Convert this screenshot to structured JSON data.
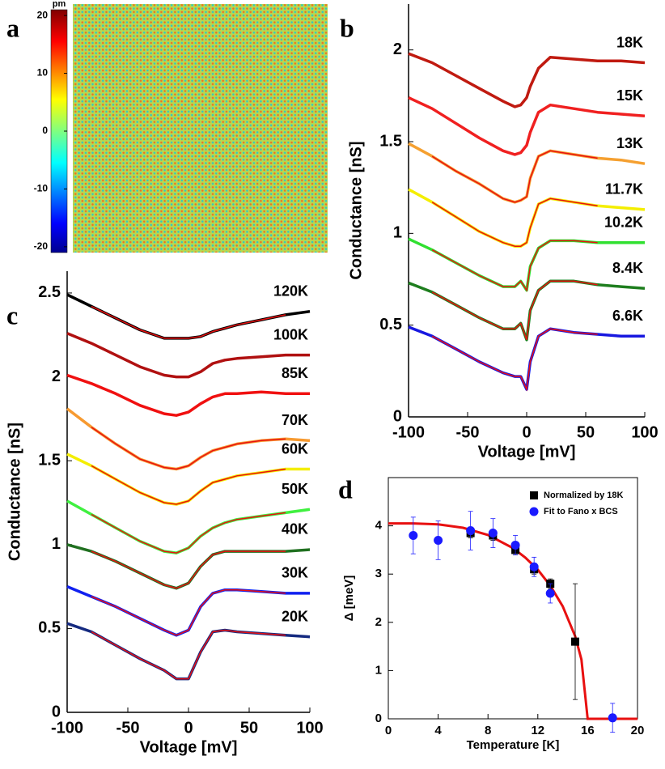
{
  "chart_data": [
    {
      "type": "image",
      "panel": "a",
      "colorbar_label": "pm",
      "colorbar_lim": [
        -21,
        21
      ],
      "colorbar_ticks": [
        20,
        10,
        0,
        -10,
        -20
      ]
    },
    {
      "type": "line",
      "panel": "b",
      "xlabel": "Voltage [mV]",
      "ylabel": "Conductance [nS]",
      "xlim": [
        -100,
        100
      ],
      "ylim": [
        0,
        2.25
      ],
      "xticks": [
        -100,
        -50,
        0,
        50,
        100
      ],
      "yticks": [
        0,
        0.5,
        1,
        1.5,
        2
      ],
      "x": [
        -100,
        -80,
        -60,
        -40,
        -20,
        -10,
        -5,
        0,
        3,
        10,
        20,
        40,
        60,
        80,
        100
      ],
      "fit_color": "#e81010",
      "series": [
        {
          "name": "18K",
          "color": "#c01a10",
          "values": [
            1.98,
            1.93,
            1.86,
            1.79,
            1.72,
            1.69,
            1.7,
            1.74,
            1.8,
            1.9,
            1.96,
            1.95,
            1.94,
            1.94,
            1.93
          ]
        },
        {
          "name": "15K",
          "color": "#f02020",
          "values": [
            1.74,
            1.68,
            1.6,
            1.52,
            1.45,
            1.43,
            1.44,
            1.48,
            1.55,
            1.66,
            1.7,
            1.68,
            1.66,
            1.65,
            1.64
          ]
        },
        {
          "name": "13K",
          "color": "#f5a030",
          "values": [
            1.49,
            1.42,
            1.34,
            1.27,
            1.19,
            1.17,
            1.18,
            1.2,
            1.3,
            1.42,
            1.45,
            1.43,
            1.41,
            1.4,
            1.38
          ],
          "fit_range": [
            -80,
            60
          ]
        },
        {
          "name": "11.7K",
          "color": "#f4ee00",
          "values": [
            1.24,
            1.17,
            1.09,
            1.01,
            0.95,
            0.93,
            0.93,
            0.95,
            1.03,
            1.16,
            1.19,
            1.17,
            1.15,
            1.14,
            1.13
          ],
          "fit_range": [
            -80,
            60
          ]
        },
        {
          "name": "10.2K",
          "color": "#30e030",
          "values": [
            0.97,
            0.91,
            0.84,
            0.77,
            0.71,
            0.71,
            0.74,
            0.69,
            0.82,
            0.92,
            0.96,
            0.96,
            0.95,
            0.95,
            0.95
          ],
          "fit_range": [
            -80,
            60
          ]
        },
        {
          "name": "8.4K",
          "color": "#1e7e1e",
          "values": [
            0.73,
            0.68,
            0.61,
            0.54,
            0.48,
            0.48,
            0.51,
            0.42,
            0.58,
            0.69,
            0.74,
            0.74,
            0.72,
            0.71,
            0.7
          ],
          "fit_range": [
            -80,
            60
          ]
        },
        {
          "name": "6.6K",
          "color": "#1818e0",
          "values": [
            0.49,
            0.44,
            0.37,
            0.3,
            0.24,
            0.22,
            0.22,
            0.15,
            0.3,
            0.44,
            0.48,
            0.46,
            0.45,
            0.44,
            0.44
          ],
          "fit_range": [
            -80,
            60
          ]
        }
      ]
    },
    {
      "type": "line",
      "panel": "c",
      "xlabel": "Voltage [mV]",
      "ylabel": "Conductance [nS]",
      "xlim": [
        -100,
        100
      ],
      "ylim": [
        0,
        2.63
      ],
      "xticks": [
        -100,
        -50,
        0,
        50,
        100
      ],
      "yticks": [
        0,
        0.5,
        1,
        1.5,
        2,
        2.5
      ],
      "x": [
        -100,
        -80,
        -60,
        -40,
        -20,
        -10,
        0,
        10,
        20,
        30,
        40,
        60,
        80,
        100
      ],
      "fit_color": "#e81010",
      "series": [
        {
          "name": "120K",
          "color": "#000000",
          "values": [
            2.49,
            2.42,
            2.35,
            2.28,
            2.23,
            2.23,
            2.23,
            2.24,
            2.27,
            2.29,
            2.31,
            2.34,
            2.37,
            2.39
          ],
          "fit_range": [
            -80,
            80
          ]
        },
        {
          "name": "100K",
          "color": "#b01010",
          "values": [
            2.26,
            2.2,
            2.13,
            2.06,
            2.01,
            2.0,
            2.0,
            2.03,
            2.08,
            2.1,
            2.11,
            2.12,
            2.13,
            2.13
          ]
        },
        {
          "name": "85K",
          "color": "#f01010",
          "values": [
            2.01,
            1.96,
            1.9,
            1.83,
            1.78,
            1.77,
            1.79,
            1.84,
            1.88,
            1.9,
            1.9,
            1.91,
            1.9,
            1.9
          ]
        },
        {
          "name": "70K",
          "color": "#f79a30",
          "values": [
            1.81,
            1.7,
            1.6,
            1.51,
            1.46,
            1.45,
            1.47,
            1.52,
            1.56,
            1.58,
            1.6,
            1.62,
            1.63,
            1.62
          ],
          "fit_range": [
            -80,
            80
          ]
        },
        {
          "name": "60K",
          "color": "#f4ee00",
          "values": [
            1.54,
            1.47,
            1.39,
            1.31,
            1.25,
            1.24,
            1.26,
            1.32,
            1.37,
            1.39,
            1.41,
            1.43,
            1.45,
            1.45
          ],
          "fit_range": [
            -80,
            80
          ]
        },
        {
          "name": "50K",
          "color": "#40f040",
          "values": [
            1.26,
            1.18,
            1.1,
            1.02,
            0.96,
            0.95,
            0.98,
            1.05,
            1.1,
            1.13,
            1.15,
            1.17,
            1.19,
            1.21
          ],
          "fit_range": [
            -80,
            80
          ]
        },
        {
          "name": "40K",
          "color": "#207020",
          "values": [
            1.0,
            0.96,
            0.9,
            0.83,
            0.76,
            0.74,
            0.77,
            0.87,
            0.94,
            0.96,
            0.96,
            0.96,
            0.96,
            0.97
          ],
          "fit_range": [
            -80,
            80
          ]
        },
        {
          "name": "30K",
          "color": "#1020f0",
          "values": [
            0.75,
            0.69,
            0.63,
            0.56,
            0.49,
            0.46,
            0.49,
            0.63,
            0.71,
            0.73,
            0.73,
            0.72,
            0.71,
            0.71
          ],
          "fit_range": [
            -80,
            80
          ]
        },
        {
          "name": "20K",
          "color": "#152a80",
          "values": [
            0.53,
            0.48,
            0.4,
            0.32,
            0.25,
            0.2,
            0.2,
            0.36,
            0.48,
            0.49,
            0.48,
            0.47,
            0.46,
            0.45
          ],
          "fit_range": [
            -80,
            80
          ]
        }
      ]
    },
    {
      "type": "scatter",
      "panel": "d",
      "xlabel": "Temperature [K]",
      "ylabel": "Δ [meV]",
      "xlim": [
        0,
        20
      ],
      "ylim": [
        0,
        5
      ],
      "xticks": [
        0,
        4,
        8,
        12,
        16,
        20
      ],
      "yticks": [
        0,
        1,
        2,
        3,
        4
      ],
      "series": [
        {
          "name": "Normalized by 18K",
          "color": "#000000",
          "marker": "square",
          "x": [
            6.6,
            8.4,
            10.2,
            11.7,
            13,
            15
          ],
          "values": [
            3.85,
            3.8,
            3.5,
            3.1,
            2.8,
            1.6
          ],
          "errors": [
            0.1,
            0.1,
            0.1,
            0.1,
            0.1,
            1.2
          ]
        },
        {
          "name": "Fit to Fano x BCS",
          "color": "#1a1aff",
          "marker": "circle",
          "x": [
            2,
            4,
            6.6,
            8.4,
            10.2,
            11.7,
            13,
            18
          ],
          "values": [
            3.8,
            3.7,
            3.9,
            3.85,
            3.6,
            3.15,
            2.6,
            0.02
          ],
          "errors": [
            0.38,
            0.4,
            0.4,
            0.3,
            0.2,
            0.2,
            0.2,
            0.3
          ]
        }
      ],
      "fit_curve": {
        "color": "#e81010",
        "x": [
          0,
          2,
          4,
          6,
          8,
          10,
          11,
          12,
          13,
          14,
          15,
          15.5,
          16,
          20
        ],
        "values": [
          4.05,
          4.05,
          4.03,
          3.96,
          3.81,
          3.54,
          3.34,
          3.09,
          2.76,
          2.33,
          1.71,
          1.23,
          0,
          0
        ]
      }
    }
  ]
}
